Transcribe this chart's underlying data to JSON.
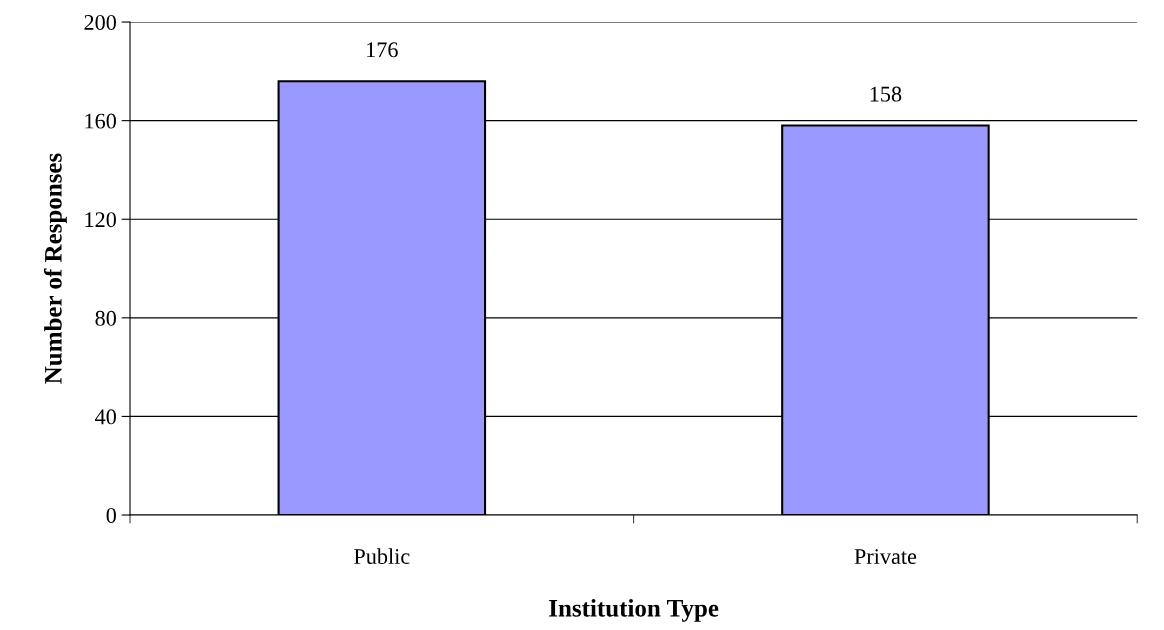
{
  "chart_data": {
    "type": "bar",
    "xlabel": "Institution Type",
    "ylabel": "Number of Responses",
    "categories": [
      "Public",
      "Private"
    ],
    "values": [
      176,
      158
    ],
    "color": "#9999ff",
    "ylim": [
      0,
      200
    ],
    "yticks": [
      0,
      40,
      80,
      120,
      160,
      200
    ],
    "grid": "y",
    "data_labels": true
  }
}
